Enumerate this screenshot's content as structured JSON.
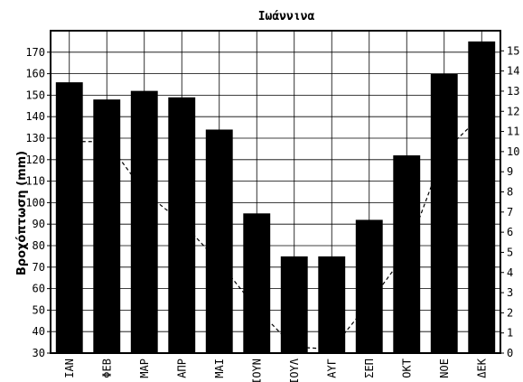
{
  "chart_data": {
    "type": "bar",
    "title": "Ιωάννινα",
    "ylabel": "Βροχόπτωση (mm)",
    "y2label": "",
    "categories": [
      "ΙΑΝ",
      "ΦΕΒ",
      "ΜΑΡ",
      "ΑΠΡ",
      "ΜΑΙ",
      "ΙΟΥΝ",
      "ΙΟΥΛ",
      "ΑΥΓ",
      "ΣΕΠ",
      "ΟΚΤ",
      "ΝΟΕ",
      "ΔΕΚ"
    ],
    "series": [
      {
        "type": "bar",
        "axis": "left",
        "values": [
          156,
          148,
          152,
          149,
          134,
          95,
          75,
          75,
          92,
          122,
          160,
          175
        ]
      },
      {
        "type": "line",
        "axis": "right",
        "style": "dashed",
        "values": [
          10.5,
          10.5,
          8.0,
          6.5,
          4.5,
          2.2,
          0.3,
          0.2,
          2.5,
          5.0,
          10.0,
          11.8
        ]
      }
    ],
    "ylim": [
      30,
      180
    ],
    "y2lim": [
      0,
      16
    ],
    "yticks": [
      30,
      40,
      50,
      60,
      70,
      80,
      90,
      100,
      110,
      120,
      130,
      140,
      150,
      160,
      170
    ],
    "y2ticks": [
      0,
      1,
      2,
      3,
      4,
      5,
      6,
      7,
      8,
      9,
      10,
      11,
      12,
      13,
      14,
      15
    ],
    "grid": true,
    "colors": {
      "bars": "#000000",
      "grid": "#000000",
      "line": "#000000"
    }
  }
}
